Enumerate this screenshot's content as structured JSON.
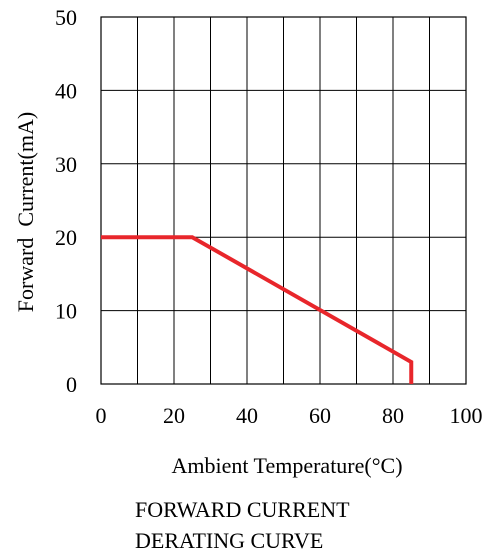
{
  "chart_data": {
    "type": "line",
    "xlabel": "Ambient Temperature(°C)",
    "ylabel": "Forward  Current(mA)",
    "caption": [
      "FORWARD CURRENT",
      "DERATING CURVE"
    ],
    "xlim": [
      0,
      100
    ],
    "ylim": [
      0,
      50
    ],
    "x_ticks": [
      0,
      20,
      40,
      60,
      80,
      100
    ],
    "y_ticks": [
      0,
      10,
      20,
      30,
      40,
      50
    ],
    "x_tick_labels": [
      "0",
      "20",
      "40",
      "60",
      "80",
      "100"
    ],
    "y_tick_labels": [
      "0",
      "10",
      "20",
      "30",
      "40",
      "50"
    ],
    "grid": true,
    "series": [
      {
        "color": "#e8262b",
        "x": [
          0,
          25,
          85,
          85
        ],
        "y": [
          20,
          20,
          3,
          0
        ]
      }
    ]
  }
}
